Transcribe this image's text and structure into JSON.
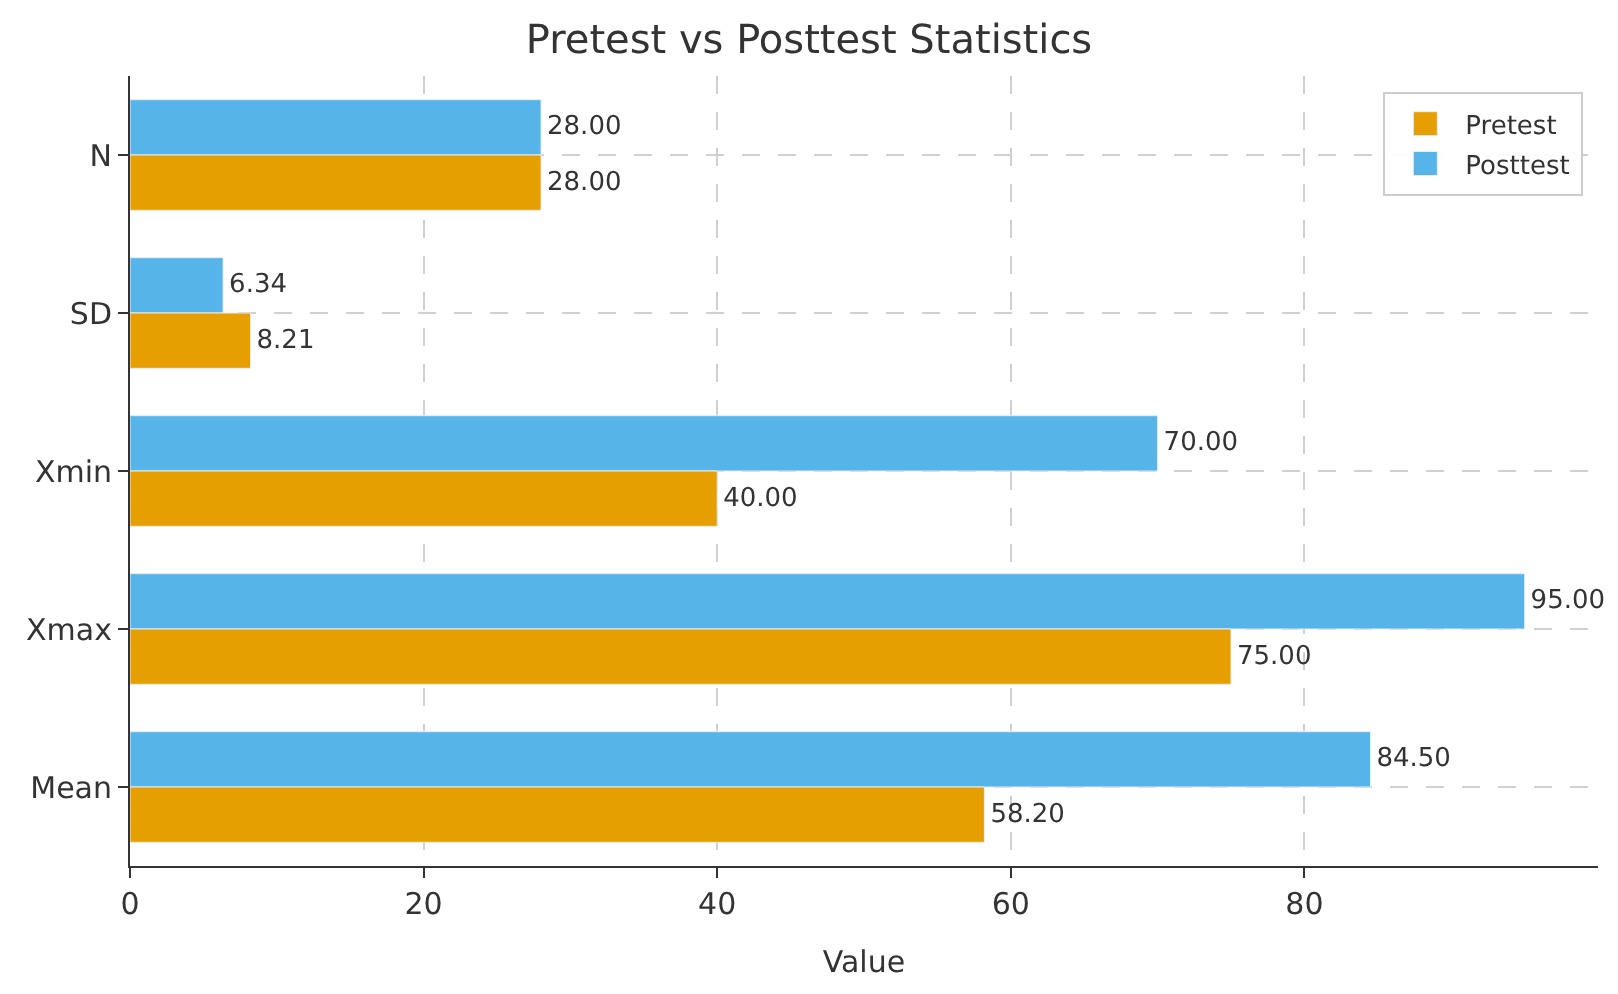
{
  "chart_data": {
    "type": "bar",
    "orientation": "horizontal",
    "title": "Pretest vs Posttest Statistics",
    "xlabel": "Value",
    "categories": [
      "N",
      "SD",
      "Xmin",
      "Xmax",
      "Mean"
    ],
    "series": [
      {
        "name": "Pretest",
        "color": "#e69f00",
        "values": [
          28,
          8.21,
          40,
          75,
          58.2
        ],
        "value_labels": [
          "28.00",
          "8.21",
          "40.00",
          "75.00",
          "58.20"
        ]
      },
      {
        "name": "Posttest",
        "color": "#56b4e9",
        "values": [
          28,
          6.34,
          70,
          95,
          84.5
        ],
        "value_labels": [
          "28.00",
          "6.34",
          "70.00",
          "95.00",
          "84.50"
        ]
      }
    ],
    "xlim": [
      0,
      100
    ],
    "xticks": [
      0,
      20,
      40,
      60,
      80
    ],
    "grid": true,
    "legend": "top right"
  }
}
